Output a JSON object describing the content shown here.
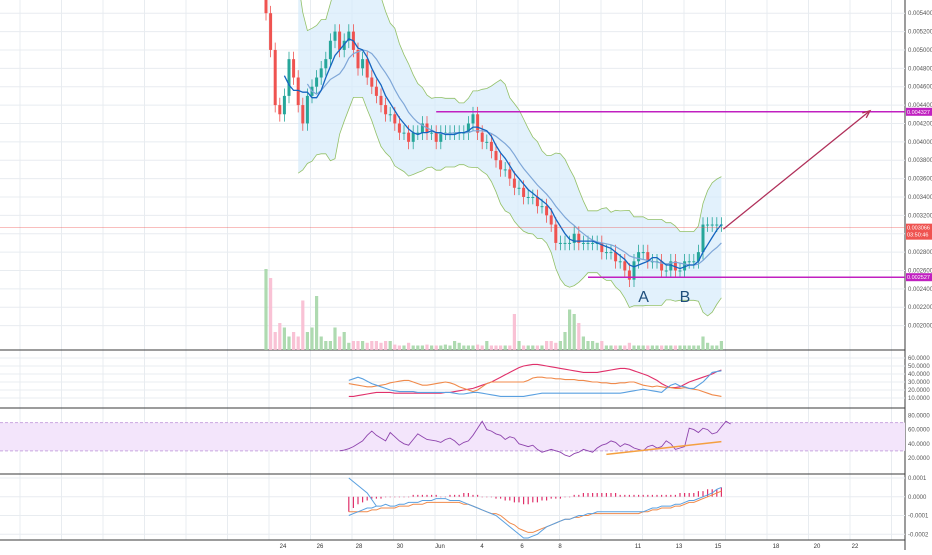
{
  "colors": {
    "up": "#26a69a",
    "down": "#ef5350",
    "up_vol": "#a5d6a7",
    "down_vol": "#f8bbd0",
    "ma_fast": "#1565c0",
    "ma_slow": "#7fa7d8",
    "band_outer": "#7cb342",
    "band_fill": "#d6ebfb",
    "magenta": "#c020c0",
    "arrow": "#b0305a",
    "adx_pink": "#e0306a",
    "adx_orange": "#f08a4b",
    "adx_blue": "#5aa0e0",
    "rsi": "#8e44ad",
    "rsi_zone": "#f3e5fb",
    "trend_line": "#f4a040",
    "macd_hist": "#e0306a",
    "macd_line": "#5aa0e0",
    "signal_line": "#f08a4b",
    "grid": "#e8ecf0"
  },
  "chart_data": [
    {
      "type": "candlestick",
      "ylim": [
        0.0018,
        0.0055
      ],
      "y_ticks": [
        "0.005400",
        "0.005200",
        "0.005000",
        "0.004800",
        "0.004600",
        "0.004400",
        "0.004200",
        "0.004000",
        "0.003800",
        "0.003600",
        "0.003400",
        "0.003200",
        "0.003000",
        "0.002800",
        "0.002600",
        "0.002400",
        "0.002200",
        "0.002000"
      ],
      "x_ticks": [
        "24",
        "26",
        "28",
        "30",
        "Jun",
        "4",
        "6",
        "8",
        "11",
        "13",
        "15",
        "18",
        "20",
        "22"
      ],
      "close": [
        0.0054,
        0.005,
        0.0044,
        0.0043,
        0.0045,
        0.0049,
        0.0047,
        0.0044,
        0.0042,
        0.0045,
        0.0046,
        0.0047,
        0.0048,
        0.0049,
        0.0051,
        0.0052,
        0.005,
        0.0051,
        0.0052,
        0.005,
        0.0048,
        0.0049,
        0.0047,
        0.0046,
        0.0045,
        0.0044,
        0.0043,
        0.0043,
        0.0042,
        0.0041,
        0.0041,
        0.004,
        0.0041,
        0.0041,
        0.0042,
        0.0041,
        0.0041,
        0.004,
        0.0041,
        0.0041,
        0.0041,
        0.0041,
        0.0041,
        0.0041,
        0.0042,
        0.0043,
        0.0041,
        0.004,
        0.004,
        0.0039,
        0.0038,
        0.0037,
        0.0037,
        0.0036,
        0.0035,
        0.0035,
        0.0034,
        0.0034,
        0.0034,
        0.0033,
        0.0033,
        0.0032,
        0.0031,
        0.0029,
        0.0029,
        0.0029,
        0.0029,
        0.003,
        0.0029,
        0.0029,
        0.0029,
        0.0029,
        0.0029,
        0.0028,
        0.0028,
        0.0028,
        0.0027,
        0.0027,
        0.0026,
        0.0025,
        0.0027,
        0.0028,
        0.0028,
        0.0027,
        0.0027,
        0.0027,
        0.0026,
        0.0026,
        0.0027,
        0.0026,
        0.0026,
        0.0027,
        0.0027,
        0.0027,
        0.0028,
        0.0031,
        0.0031,
        0.0031,
        0.0031,
        0.0031
      ],
      "band_up_last": 0.0035,
      "band_dn_last": 0.0023,
      "markers": {
        "resistance": {
          "value": "0.004327",
          "y": 0.004327
        },
        "support": {
          "value": "0.002527",
          "y": 0.002527
        },
        "current": {
          "value": "0.003066",
          "y": 0.003066,
          "countdown": "03:50:46"
        },
        "points": [
          {
            "label": "A"
          },
          {
            "label": "B"
          }
        ]
      },
      "volume": [
        0.9,
        0.8,
        0.2,
        0.3,
        0.25,
        0.15,
        0.2,
        0.15,
        0.55,
        0.2,
        0.25,
        0.6,
        0.15,
        0.1,
        0.1,
        0.25,
        0.15,
        0.2,
        0.08,
        0.1,
        0.1,
        0.1,
        0.08,
        0.1,
        0.1,
        0.08,
        0.1,
        0.1,
        0.06,
        0.05,
        0.05,
        0.08,
        0.05,
        0.05,
        0.05,
        0.06,
        0.05,
        0.05,
        0.05,
        0.06,
        0.05,
        0.1,
        0.08,
        0.05,
        0.05,
        0.05,
        0.06,
        0.05,
        0.1,
        0.05,
        0.05,
        0.05,
        0.05,
        0.05,
        0.4,
        0.1,
        0.05,
        0.05,
        0.05,
        0.05,
        0.05,
        0.1,
        0.1,
        0.08,
        0.1,
        0.2,
        0.45,
        0.4,
        0.3,
        0.15,
        0.1,
        0.1,
        0.08,
        0.1,
        0.05,
        0.05,
        0.05,
        0.05,
        0.05,
        0.08,
        0.05,
        0.05,
        0.05,
        0.05,
        0.05,
        0.05,
        0.05,
        0.05,
        0.05,
        0.05,
        0.05,
        0.05,
        0.05,
        0.05,
        0.05,
        0.15,
        0.08,
        0.05,
        0.05,
        0.1
      ]
    },
    {
      "type": "line",
      "name": "",
      "ylim": [
        0,
        60
      ],
      "y_ticks": [
        "60.0000",
        "50.0000",
        "40.0000",
        "30.0000",
        "20.0000",
        "10.0000"
      ],
      "series": [
        {
          "color_key": "adx_pink",
          "values": [
            null,
            null,
            null,
            null,
            null,
            null,
            null,
            null,
            null,
            null,
            null,
            null,
            null,
            null,
            null,
            null,
            null,
            null,
            12,
            12,
            13,
            14,
            15,
            16,
            17,
            17,
            17,
            17,
            16,
            16,
            16,
            16,
            16,
            16,
            16,
            16,
            16,
            16,
            16,
            17,
            17,
            18,
            19,
            20,
            21,
            22,
            24,
            26,
            28,
            30,
            33,
            36,
            39,
            42,
            45,
            48,
            50,
            51,
            52,
            52,
            51,
            50,
            49,
            48,
            47,
            46,
            45,
            44,
            43,
            42,
            42,
            42,
            42,
            43,
            44,
            45,
            46,
            47,
            47,
            46,
            44,
            42,
            40,
            38,
            35,
            32,
            28,
            25,
            23,
            23,
            24,
            27,
            30,
            32,
            34,
            36,
            38,
            40,
            43,
            45
          ]
        },
        {
          "color_key": "adx_orange",
          "values": [
            null,
            null,
            null,
            null,
            null,
            null,
            null,
            null,
            null,
            null,
            null,
            null,
            null,
            null,
            null,
            null,
            null,
            null,
            28,
            27,
            26,
            25,
            24,
            24,
            25,
            26,
            27,
            29,
            30,
            31,
            32,
            32,
            30,
            28,
            26,
            26,
            27,
            28,
            29,
            30,
            29,
            27,
            24,
            22,
            20,
            18,
            20,
            24,
            28,
            30,
            30,
            30,
            30,
            30,
            30,
            30,
            30,
            32,
            35,
            36,
            36,
            35,
            35,
            34,
            34,
            33,
            33,
            33,
            32,
            32,
            31,
            30,
            30,
            29,
            29,
            28,
            28,
            29,
            29,
            30,
            30,
            28,
            26,
            25,
            24,
            25,
            24,
            23,
            23,
            22,
            22,
            23,
            22,
            21,
            20,
            18,
            16,
            14,
            13,
            12
          ]
        },
        {
          "color_key": "adx_blue",
          "values": [
            null,
            null,
            null,
            null,
            null,
            null,
            null,
            null,
            null,
            null,
            null,
            null,
            null,
            null,
            null,
            null,
            null,
            null,
            32,
            34,
            36,
            34,
            31,
            28,
            26,
            24,
            22,
            20,
            19,
            18,
            18,
            18,
            18,
            17,
            17,
            17,
            17,
            17,
            17,
            17,
            17,
            16,
            15,
            15,
            16,
            17,
            17,
            16,
            15,
            14,
            13,
            12,
            12,
            12,
            12,
            12,
            12,
            13,
            14,
            15,
            16,
            16,
            16,
            16,
            16,
            16,
            16,
            16,
            16,
            16,
            16,
            16,
            16,
            16,
            16,
            16,
            16,
            16,
            17,
            18,
            19,
            20,
            21,
            20,
            19,
            18,
            17,
            22,
            26,
            28,
            25,
            24,
            22,
            22,
            26,
            30,
            36,
            42,
            43,
            44
          ]
        }
      ]
    },
    {
      "type": "line",
      "ylim": [
        0,
        85
      ],
      "y_ticks": [
        "80.0000",
        "60.0000",
        "40.0000",
        "20.0000"
      ],
      "band": [
        30,
        70
      ],
      "values": [
        null,
        null,
        null,
        null,
        null,
        null,
        null,
        null,
        null,
        null,
        null,
        null,
        null,
        null,
        null,
        null,
        30,
        31,
        33,
        36,
        40,
        44,
        52,
        58,
        52,
        48,
        44,
        56,
        50,
        44,
        40,
        38,
        46,
        54,
        50,
        46,
        45,
        44,
        42,
        46,
        48,
        44,
        38,
        42,
        44,
        52,
        62,
        72,
        60,
        58,
        54,
        52,
        46,
        50,
        48,
        40,
        38,
        36,
        38,
        32,
        28,
        30,
        32,
        30,
        28,
        24,
        22,
        26,
        28,
        32,
        30,
        28,
        34,
        38,
        40,
        44,
        42,
        36,
        40,
        38,
        34,
        32,
        30,
        36,
        38,
        34,
        36,
        44,
        40,
        32,
        34,
        36,
        62,
        60,
        56,
        62,
        60,
        54,
        56,
        64,
        72,
        68
      ]
    },
    {
      "type": "bar",
      "name": "",
      "ylim": [
        -0.00022,
        0.0001
      ],
      "y_ticks": [
        "0.0001",
        "0.0000",
        "-0.0001",
        "-0.0002"
      ],
      "macd_start": 18,
      "hist": [
        -8e-05,
        -6e-05,
        -4e-05,
        -3e-05,
        -2e-05,
        -1e-05,
        -1e-05,
        -1e-05,
        0,
        0,
        0,
        0,
        0,
        0,
        1e-05,
        1e-05,
        1e-05,
        1e-05,
        1e-05,
        1e-05,
        0,
        0,
        1e-05,
        1e-05,
        1e-05,
        2e-05,
        2e-05,
        1e-05,
        1e-05,
        0,
        0,
        0,
        -1e-05,
        -1e-05,
        -2e-05,
        -2e-05,
        -3e-05,
        -3e-05,
        -4e-05,
        -4e-05,
        -3e-05,
        -3e-05,
        -2e-05,
        -2e-05,
        -1e-05,
        -1e-05,
        -1e-05,
        0,
        0,
        1e-05,
        1e-05,
        2e-05,
        2e-05,
        2e-05,
        2e-05,
        2e-05,
        2e-05,
        2e-05,
        2e-05,
        1e-05,
        1e-05,
        1e-05,
        1e-05,
        1e-05,
        1e-05,
        1e-05,
        1e-05,
        1e-05,
        1e-05,
        1e-05,
        1e-05,
        1e-05,
        2e-05,
        2e-05,
        2e-05,
        2e-05,
        3e-05,
        3e-05,
        4e-05,
        4e-05,
        4e-05,
        5e-05
      ],
      "macd": [
        -0.0001,
        -9e-05,
        -8e-05,
        -7e-05,
        -6e-05,
        -6e-05,
        -5e-05,
        -5e-05,
        -4e-05,
        -5e-05,
        -5e-05,
        -4e-05,
        -4e-05,
        -3e-05,
        -3e-05,
        -3e-05,
        -2e-05,
        -2e-05,
        -2e-05,
        -1e-05,
        -1e-05,
        -1e-05,
        -2e-05,
        -2e-05,
        -2e-05,
        -3e-05,
        -4e-05,
        -5e-05,
        -6e-05,
        -7e-05,
        -8e-05,
        -9e-05,
        -0.0001,
        -0.00012,
        -0.00014,
        -0.00016,
        -0.00018,
        -0.0002,
        -0.00022,
        -0.00022,
        -0.00021,
        -0.0002,
        -0.00018,
        -0.00016,
        -0.00015,
        -0.00014,
        -0.00013,
        -0.00012,
        -0.00012,
        -0.00011,
        -0.0001,
        -0.0001,
        -9e-05,
        -9e-05,
        -8e-05,
        -8e-05,
        -8e-05,
        -8e-05,
        -8e-05,
        -8e-05,
        -8e-05,
        -8e-05,
        -8e-05,
        -8e-05,
        -8e-05,
        -7e-05,
        -6e-05,
        -6e-05,
        -5e-05,
        -5e-05,
        -5e-05,
        -4e-05,
        -4e-05,
        -3e-05,
        -2e-05,
        -2e-05,
        -1e-05,
        0,
        1e-05,
        2e-05,
        4e-05,
        5e-05
      ],
      "signal": [
        -8e-05,
        -8e-05,
        -8e-05,
        -8e-05,
        -8e-05,
        -7e-05,
        -7e-05,
        -6e-05,
        -6e-05,
        -6e-05,
        -6e-05,
        -5e-05,
        -5e-05,
        -5e-05,
        -4e-05,
        -4e-05,
        -4e-05,
        -3e-05,
        -3e-05,
        -3e-05,
        -3e-05,
        -3e-05,
        -3e-05,
        -3e-05,
        -3e-05,
        -4e-05,
        -4e-05,
        -5e-05,
        -6e-05,
        -7e-05,
        -8e-05,
        -9e-05,
        -9e-05,
        -0.0001,
        -0.00012,
        -0.00014,
        -0.00015,
        -0.00017,
        -0.00018,
        -0.00019,
        -0.00019,
        -0.00018,
        -0.00017,
        -0.00016,
        -0.00015,
        -0.00014,
        -0.00013,
        -0.00012,
        -0.00012,
        -0.00011,
        -0.00011,
        -0.0001,
        -0.0001,
        -9e-05,
        -9e-05,
        -9e-05,
        -9e-05,
        -9e-05,
        -9e-05,
        -9e-05,
        -9e-05,
        -9e-05,
        -9e-05,
        -9e-05,
        -8e-05,
        -8e-05,
        -7e-05,
        -7e-05,
        -6e-05,
        -6e-05,
        -6e-05,
        -5e-05,
        -5e-05,
        -4e-05,
        -3e-05,
        -3e-05,
        -2e-05,
        -1e-05,
        0,
        1e-05,
        2e-05,
        3e-05
      ]
    }
  ]
}
